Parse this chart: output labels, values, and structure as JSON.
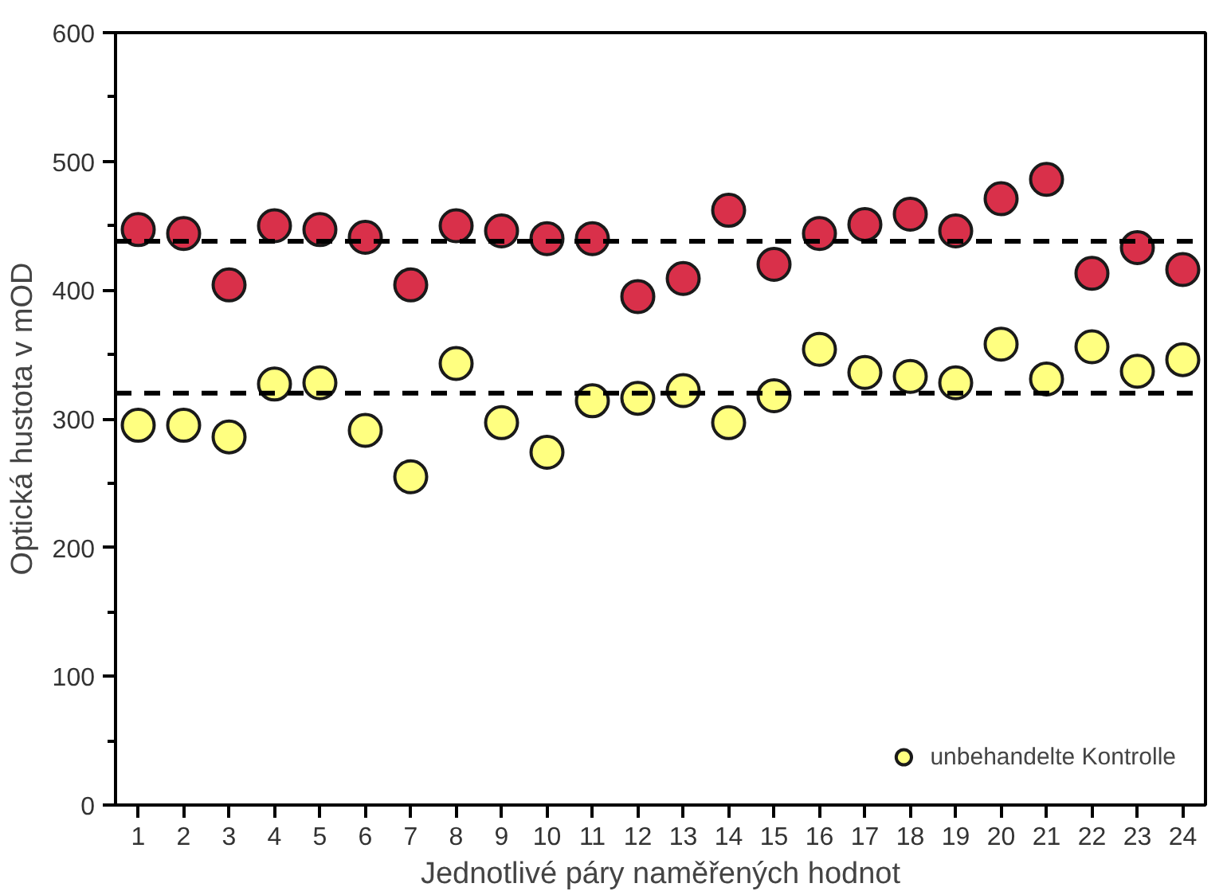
{
  "chart_data": {
    "type": "scatter",
    "xlabel": "Jednotlivé páry naměřených hodnot",
    "ylabel": "Optická hustota v mOD",
    "x": [
      1,
      2,
      3,
      4,
      5,
      6,
      7,
      8,
      9,
      10,
      11,
      12,
      13,
      14,
      15,
      16,
      17,
      18,
      19,
      20,
      21,
      22,
      23,
      24
    ],
    "xlim": [
      0.5,
      24.5
    ],
    "xticks": [
      1,
      2,
      3,
      4,
      5,
      6,
      7,
      8,
      9,
      10,
      11,
      12,
      13,
      14,
      15,
      16,
      17,
      18,
      19,
      20,
      21,
      22,
      23,
      24
    ],
    "ylim": [
      0,
      600
    ],
    "yticks": [
      0,
      100,
      200,
      300,
      400,
      500,
      600
    ],
    "series": [
      {
        "color": "#d9304a",
        "values": [
          447,
          444,
          404,
          450,
          447,
          441,
          404,
          450,
          446,
          440,
          440,
          395,
          409,
          462,
          420,
          444,
          451,
          459,
          446,
          471,
          486,
          413,
          433,
          416
        ]
      },
      {
        "name": "unbehandelte Kontrolle",
        "color": "#ffff80",
        "values": [
          295,
          295,
          286,
          327,
          328,
          291,
          255,
          343,
          297,
          274,
          314,
          316,
          322,
          297,
          318,
          354,
          336,
          333,
          328,
          358,
          331,
          356,
          337,
          346
        ]
      }
    ],
    "ref_lines": [
      {
        "axis": "y",
        "value": 438,
        "color": "#000000",
        "line_style": "dashed"
      },
      {
        "axis": "y",
        "value": 320,
        "color": "#000000",
        "line_style": "dashed"
      }
    ],
    "marker": "circle",
    "legend": "bottom right",
    "grid": false
  }
}
